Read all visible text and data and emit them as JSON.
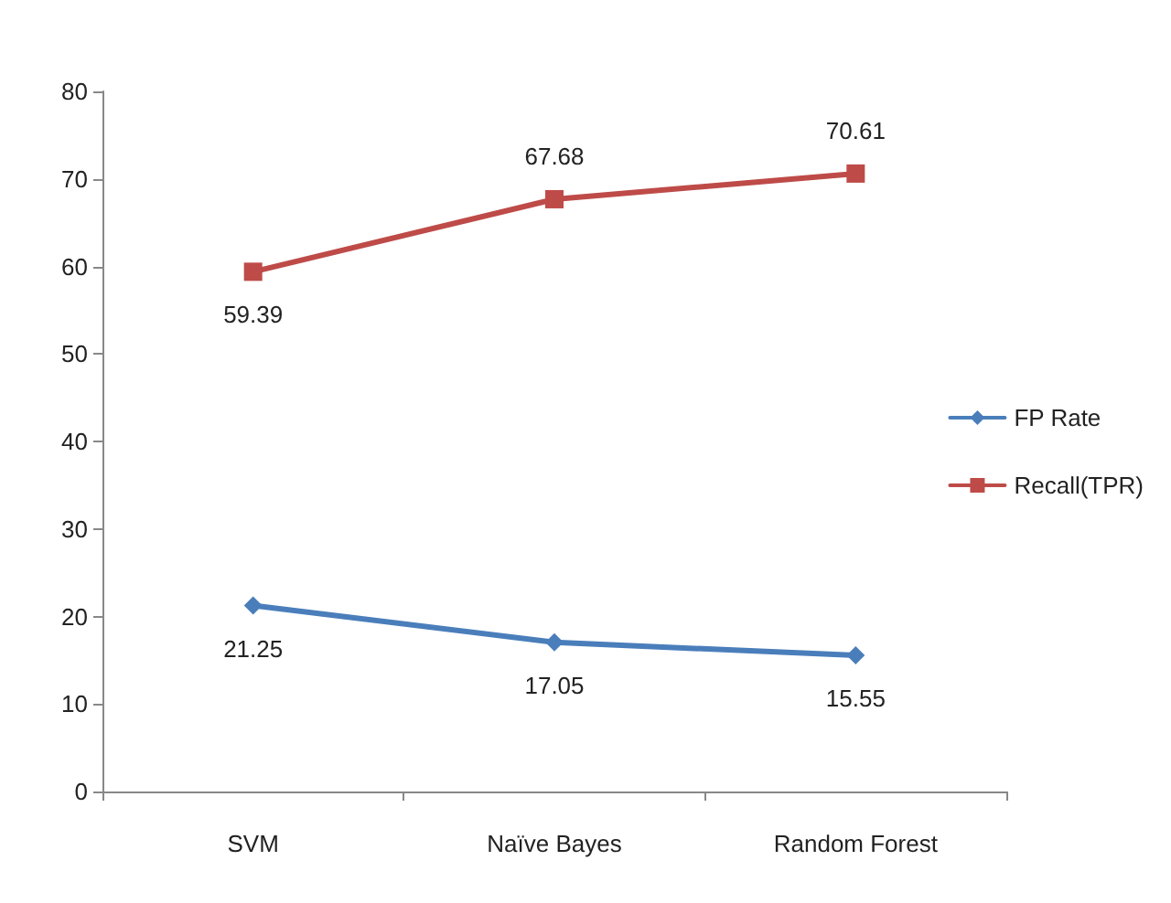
{
  "chart_data": {
    "type": "line",
    "categories": [
      "SVM",
      "Naïve Bayes",
      "Random Forest"
    ],
    "series": [
      {
        "name": "FP Rate",
        "color": "#4a7ebb",
        "marker": "diamond",
        "values": [
          21.25,
          17.05,
          15.55
        ]
      },
      {
        "name": "Recall(TPR)",
        "color": "#be4b48",
        "marker": "square",
        "values": [
          59.39,
          67.68,
          70.61
        ]
      }
    ],
    "ylim": [
      0,
      80
    ],
    "yticks": [
      0,
      10,
      20,
      30,
      40,
      50,
      60,
      70,
      80
    ],
    "grid": false,
    "legend": "right",
    "data_labels": true
  }
}
